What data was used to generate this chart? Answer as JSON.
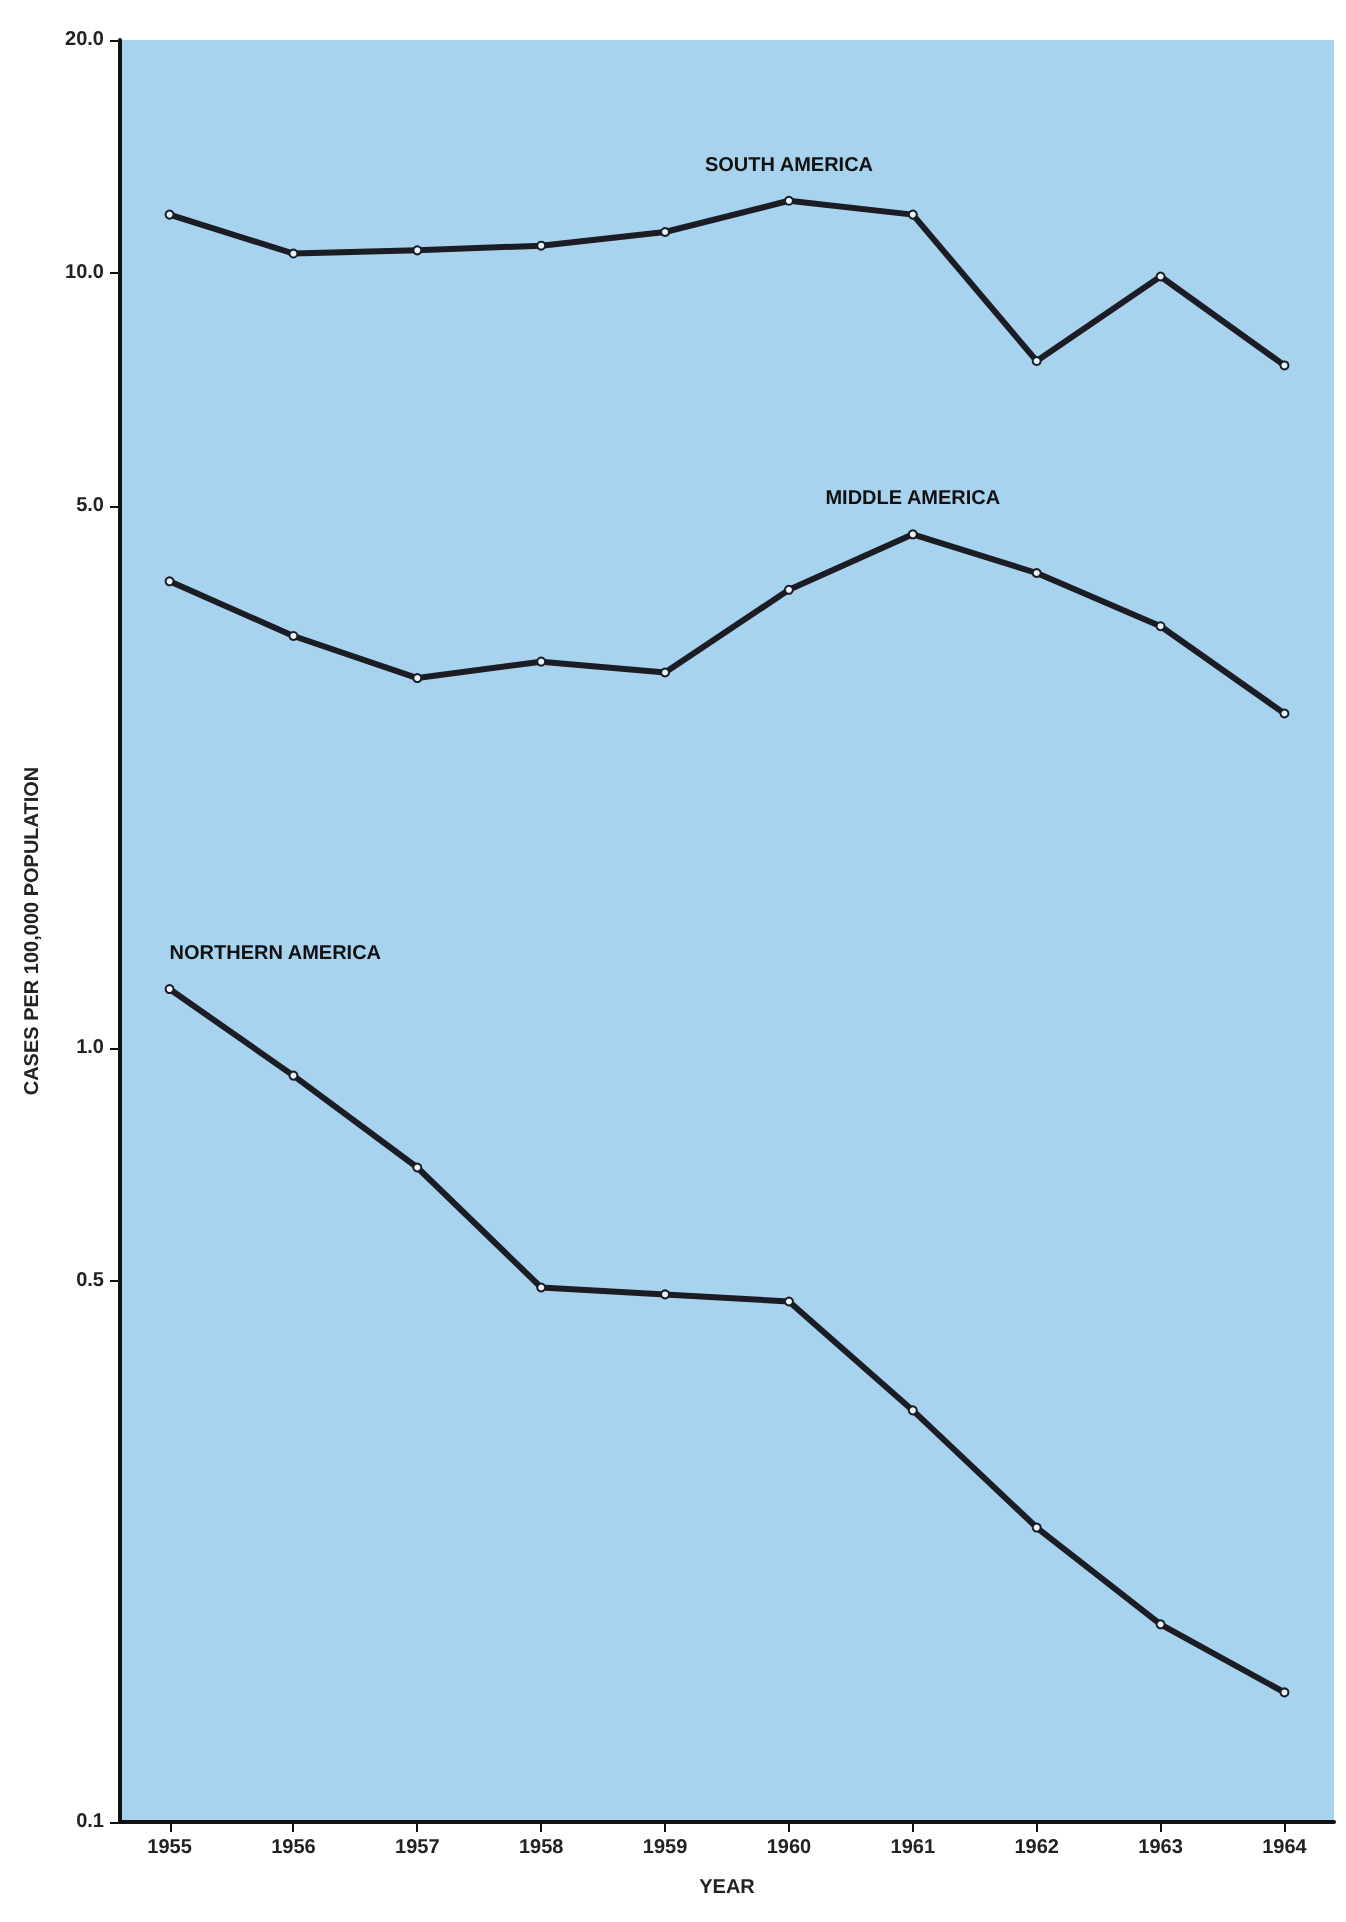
{
  "chart_data": {
    "type": "line",
    "xlabel": "YEAR",
    "ylabel": "CASES PER 100,000 POPULATION",
    "x": [
      1955,
      1956,
      1957,
      1958,
      1959,
      1960,
      1961,
      1962,
      1963,
      1964
    ],
    "series": [
      {
        "name": "SOUTH AMERICA",
        "color": "#1c1c24",
        "values": [
          11.9,
          10.6,
          10.7,
          10.85,
          11.3,
          12.4,
          11.9,
          7.7,
          9.9,
          7.6
        ]
      },
      {
        "name": "MIDDLE AMERICA",
        "color": "#1c1c24",
        "values": [
          4.0,
          3.4,
          3.0,
          3.15,
          3.05,
          3.9,
          4.6,
          4.1,
          3.5,
          2.7
        ]
      },
      {
        "name": "NORTHERN AMERICA",
        "color": "#1c1c24",
        "values": [
          1.19,
          0.92,
          0.7,
          0.49,
          0.48,
          0.47,
          0.34,
          0.24,
          0.18,
          0.147
        ]
      }
    ],
    "log": "y",
    "xlim": [
      1954.6,
      1964.4
    ],
    "xticks": [
      1955,
      1956,
      1957,
      1958,
      1959,
      1960,
      1961,
      1962,
      1963,
      1964
    ],
    "ylim": [
      0.1,
      20
    ],
    "yticks": [
      0.1,
      0.5,
      {
        "value": 1,
        "label": "1.0"
      },
      {
        "value": 5,
        "label": "5.0"
      },
      {
        "value": 10,
        "label": "10.0"
      },
      {
        "value": 20,
        "label": "20.0"
      }
    ],
    "grid": false,
    "legend": false,
    "marker": "circle",
    "line_style": "solid"
  }
}
